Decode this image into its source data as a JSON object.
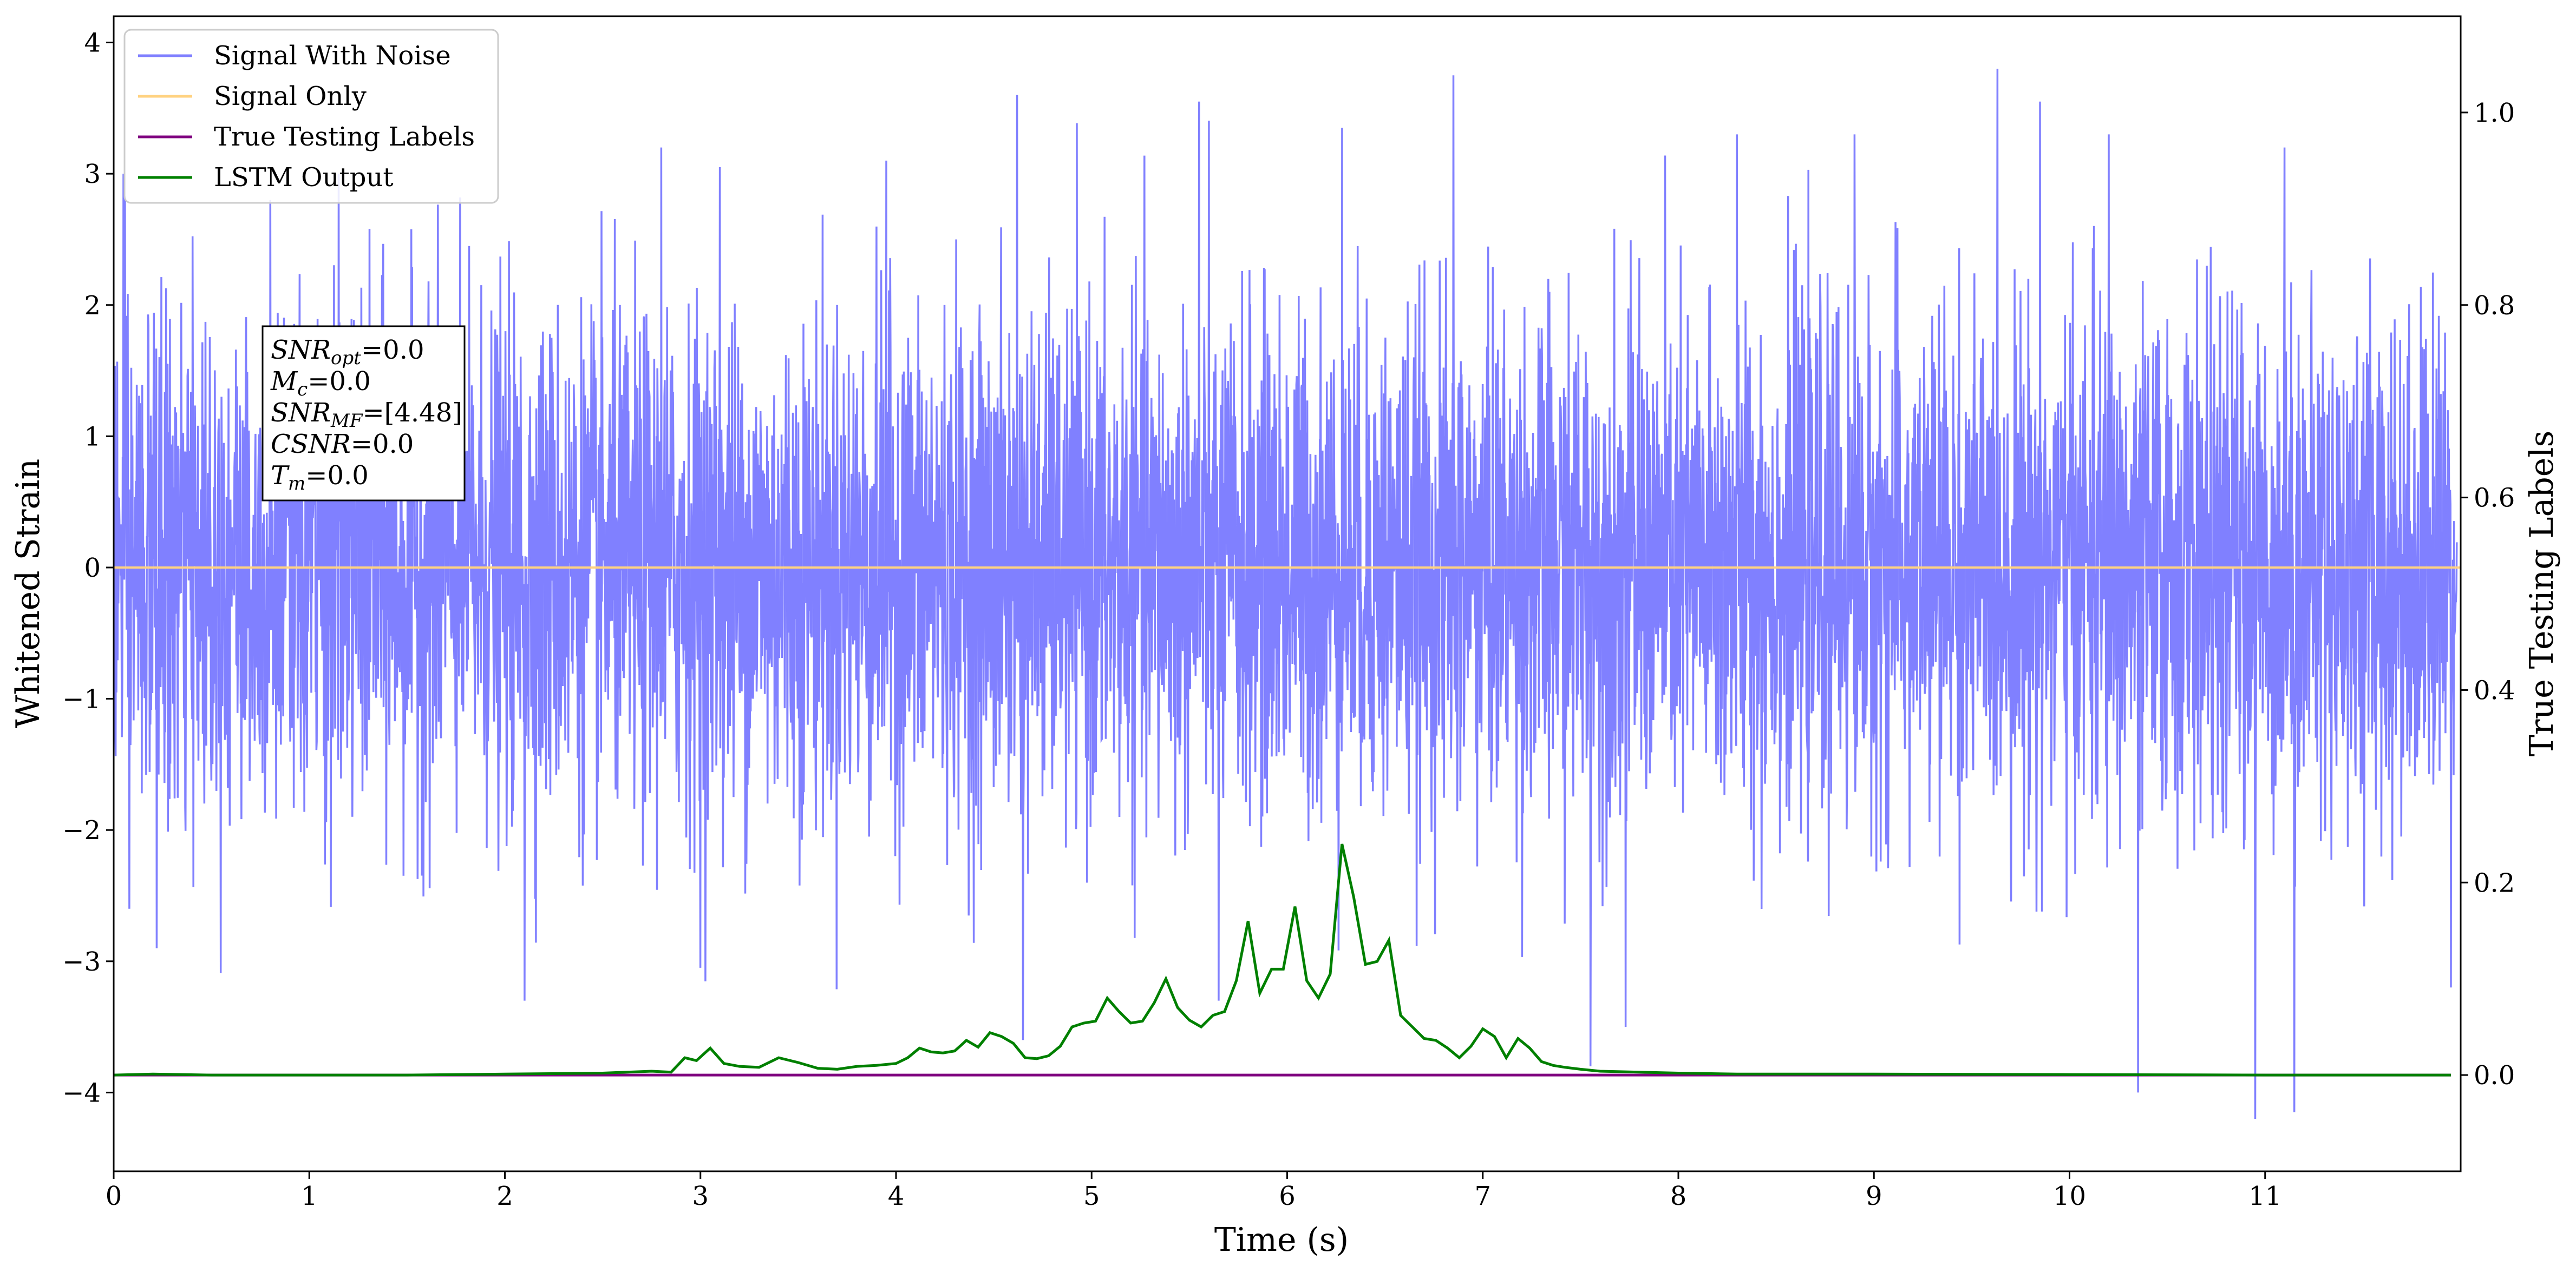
{
  "chart_data": {
    "type": "line",
    "title": "",
    "xlabel": "Time (s)",
    "ylabel": "Whitened Strain",
    "y2label": "True Testing Labels",
    "xlim": [
      0,
      12
    ],
    "ylim": [
      -4.6,
      4.2
    ],
    "y2lim": [
      -0.1,
      1.1
    ],
    "x_ticks": [
      "0",
      "1",
      "2",
      "3",
      "4",
      "5",
      "6",
      "7",
      "8",
      "9",
      "10",
      "11"
    ],
    "y_ticks": [
      "4",
      "3",
      "2",
      "1",
      "0",
      "−1",
      "−2",
      "−3",
      "−4"
    ],
    "y_tick_values": [
      4,
      3,
      2,
      1,
      0,
      -1,
      -2,
      -3,
      -4
    ],
    "y2_ticks": [
      "1.0",
      "0.8",
      "0.6",
      "0.4",
      "0.2",
      "0.0"
    ],
    "y2_tick_values": [
      1.0,
      0.8,
      0.6,
      0.4,
      0.2,
      0.0
    ],
    "legend_position": "top-left",
    "series": [
      {
        "name": "Signal With Noise",
        "color": "#8080ff",
        "axis": "left",
        "description_range": [
          -4.2,
          3.8
        ],
        "notable_peaks": [
          [
            0.05,
            3.0
          ],
          [
            0.8,
            2.8
          ],
          [
            1.15,
            3.0
          ],
          [
            2.8,
            3.2
          ],
          [
            3.1,
            3.05
          ],
          [
            3.95,
            3.1
          ],
          [
            4.62,
            3.6
          ],
          [
            5.55,
            3.55
          ],
          [
            6.28,
            3.35
          ],
          [
            6.85,
            3.75
          ],
          [
            8.3,
            3.3
          ],
          [
            8.9,
            3.3
          ],
          [
            9.85,
            3.55
          ],
          [
            10.2,
            3.3
          ],
          [
            10.95,
            3.5
          ],
          [
            11.1,
            3.2
          ]
        ],
        "notable_troughs": [
          [
            0.08,
            -2.6
          ],
          [
            0.22,
            -2.9
          ],
          [
            2.1,
            -3.3
          ],
          [
            3.0,
            -3.05
          ],
          [
            4.65,
            -3.6
          ],
          [
            5.65,
            -3.3
          ],
          [
            7.55,
            -3.8
          ],
          [
            7.73,
            -3.5
          ],
          [
            10.35,
            -4.0
          ],
          [
            10.95,
            -4.2
          ],
          [
            11.15,
            -4.15
          ],
          [
            11.95,
            -3.2
          ]
        ]
      },
      {
        "name": "Signal Only",
        "color": "#ffd280",
        "axis": "left",
        "x": [
          0,
          12
        ],
        "y": [
          0,
          0
        ]
      },
      {
        "name": "True Testing Labels",
        "color": "#800080",
        "axis": "right",
        "x": [
          0,
          11.95
        ],
        "y": [
          0,
          0
        ]
      },
      {
        "name": "LSTM Output",
        "color": "#008000",
        "axis": "right",
        "x": [
          0,
          0.2,
          0.5,
          1.0,
          1.5,
          2.0,
          2.5,
          2.75,
          2.85,
          2.92,
          2.98,
          3.05,
          3.12,
          3.2,
          3.3,
          3.4,
          3.5,
          3.6,
          3.7,
          3.8,
          3.9,
          4.0,
          4.06,
          4.12,
          4.18,
          4.24,
          4.3,
          4.36,
          4.42,
          4.48,
          4.54,
          4.6,
          4.66,
          4.72,
          4.78,
          4.84,
          4.9,
          4.96,
          5.02,
          5.08,
          5.14,
          5.2,
          5.26,
          5.32,
          5.38,
          5.44,
          5.5,
          5.56,
          5.62,
          5.68,
          5.74,
          5.8,
          5.86,
          5.92,
          5.98,
          6.04,
          6.1,
          6.16,
          6.22,
          6.28,
          6.34,
          6.4,
          6.46,
          6.52,
          6.58,
          6.64,
          6.7,
          6.76,
          6.82,
          6.88,
          6.94,
          7.0,
          7.06,
          7.12,
          7.18,
          7.24,
          7.3,
          7.36,
          7.42,
          7.5,
          7.6,
          7.8,
          8.0,
          8.3,
          8.6,
          9.0,
          10.0,
          11.0,
          11.95
        ],
        "y": [
          0,
          0.001,
          0,
          0,
          0,
          0.001,
          0.002,
          0.004,
          0.003,
          0.018,
          0.015,
          0.028,
          0.012,
          0.009,
          0.008,
          0.018,
          0.013,
          0.007,
          0.006,
          0.009,
          0.01,
          0.012,
          0.018,
          0.028,
          0.024,
          0.023,
          0.025,
          0.036,
          0.029,
          0.044,
          0.04,
          0.033,
          0.018,
          0.017,
          0.02,
          0.03,
          0.05,
          0.054,
          0.056,
          0.08,
          0.066,
          0.054,
          0.056,
          0.075,
          0.1,
          0.07,
          0.057,
          0.05,
          0.062,
          0.066,
          0.098,
          0.16,
          0.085,
          0.11,
          0.11,
          0.175,
          0.098,
          0.08,
          0.105,
          0.24,
          0.185,
          0.115,
          0.118,
          0.14,
          0.062,
          0.05,
          0.038,
          0.036,
          0.028,
          0.018,
          0.03,
          0.048,
          0.04,
          0.018,
          0.038,
          0.028,
          0.014,
          0.01,
          0.008,
          0.006,
          0.004,
          0.003,
          0.002,
          0.001,
          0.001,
          0.001,
          0.0005,
          0,
          0
        ]
      }
    ],
    "annotation": {
      "lines": [
        {
          "sym": "SNR",
          "sub": "opt",
          "val": "=0.0"
        },
        {
          "sym": "M",
          "sub": "c",
          "val": "=0.0"
        },
        {
          "sym": "SNR",
          "sub": "MF",
          "val": "=[4.48]"
        },
        {
          "sym": "CSNR",
          "sub": "",
          "val": "=0.0"
        },
        {
          "sym": "T",
          "sub": "m",
          "val": "=0.0"
        }
      ]
    }
  }
}
